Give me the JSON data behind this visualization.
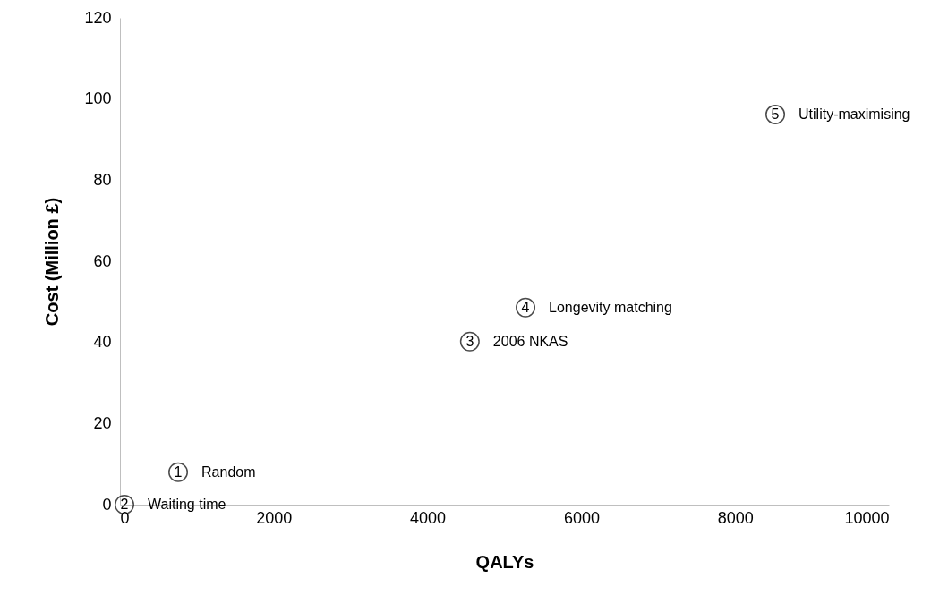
{
  "chart_data": {
    "type": "scatter",
    "xlabel": "QALYs",
    "ylabel": "Cost (Million £)",
    "x": [
      757,
      58,
      4550,
      5274,
      8522
    ],
    "values": [
      8,
      0,
      40.2,
      48.6,
      96.2
    ],
    "color": "#000000",
    "marker": "circle",
    "grid": false,
    "xlim": [
      0,
      10000
    ],
    "xticks": [
      0,
      2000,
      4000,
      6000,
      8000,
      10000
    ],
    "ylim": [
      0,
      120
    ],
    "yticks": [
      0,
      20,
      40,
      60,
      80,
      100,
      120
    ],
    "annotations": [
      {
        "text": "1",
        "x": 757,
        "y": 8
      },
      {
        "text": "Random",
        "x": 757,
        "y": 8
      },
      {
        "text": "2",
        "x": 58,
        "y": 0
      },
      {
        "text": "Waiting time",
        "x": 58,
        "y": 0
      },
      {
        "text": "3",
        "x": 4550,
        "y": 40.2
      },
      {
        "text": "2006 NKAS",
        "x": 4550,
        "y": 40.2
      },
      {
        "text": "4",
        "x": 5274,
        "y": 48.6
      },
      {
        "text": "Longevity matching",
        "x": 5274,
        "y": 48.6
      },
      {
        "text": "5",
        "x": 8522,
        "y": 96.2
      },
      {
        "text": "Utility-maximising",
        "x": 8522,
        "y": 96.2
      }
    ]
  }
}
